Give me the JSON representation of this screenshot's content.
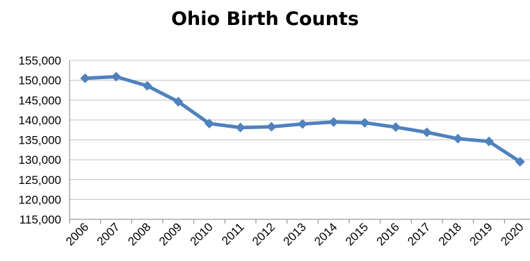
{
  "chart_data": {
    "type": "line",
    "title": "Ohio Birth Counts",
    "xlabel": "",
    "ylabel": "",
    "categories": [
      "2006",
      "2007",
      "2008",
      "2009",
      "2010",
      "2011",
      "2012",
      "2013",
      "2014",
      "2015",
      "2016",
      "2017",
      "2018",
      "2019",
      "2020"
    ],
    "series": [
      {
        "values": [
          150500,
          150900,
          148600,
          144600,
          139100,
          138100,
          138300,
          139000,
          139500,
          139300,
          138200,
          136900,
          135300,
          134600,
          129500
        ],
        "color": "#4f81bd"
      }
    ],
    "ylim": [
      115000,
      155000
    ],
    "yticks": [
      115000,
      120000,
      125000,
      130000,
      135000,
      140000,
      145000,
      150000,
      155000
    ],
    "ytick_labels": [
      "115,000",
      "120,000",
      "125,000",
      "130,000",
      "135,000",
      "140,000",
      "145,000",
      "150,000",
      "155,000"
    ],
    "grid": true,
    "legend": "none"
  }
}
